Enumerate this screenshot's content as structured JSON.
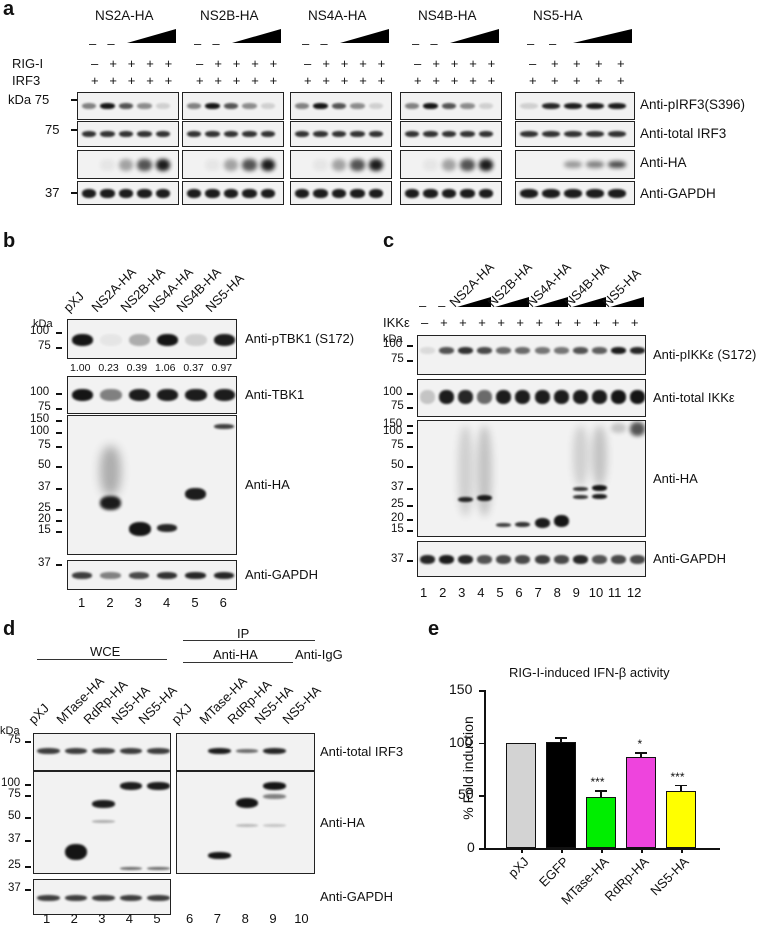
{
  "panel_a": {
    "letter": "a",
    "groups": [
      "NS2A-HA",
      "NS2B-HA",
      "NS4A-HA",
      "NS4B-HA",
      "NS5-HA"
    ],
    "row_labels": {
      "rig": "RIG-I",
      "irf3": "IRF3"
    },
    "dose_marks": [
      "–",
      "–"
    ],
    "rig_signs": [
      "–",
      "+",
      "+",
      "+",
      "+"
    ],
    "irf3_signs": [
      "+",
      "+",
      "+",
      "+",
      "+"
    ],
    "mw_labels": {
      "kda": "kDa 75",
      "m75": "75",
      "m37": "37"
    },
    "antibodies": [
      "Anti-pIRF3(S396)",
      "Anti-total IRF3",
      "Anti-HA",
      "Anti-GAPDH"
    ]
  },
  "panel_b": {
    "letter": "b",
    "lanes": [
      "pXJ",
      "NS2A-HA",
      "NS2B-HA",
      "NS4A-HA",
      "NS4B-HA",
      "NS5-HA"
    ],
    "kda": "kDa",
    "quant": [
      "1.00",
      "0.23",
      "0.39",
      "1.06",
      "0.37",
      "0.97"
    ],
    "antibodies": [
      "Anti-pTBK1 (S172)",
      "Anti-TBK1",
      "Anti-HA",
      "Anti-GAPDH"
    ],
    "mw_top": [
      "100",
      "75"
    ],
    "mw_tbk": [
      "100",
      "75"
    ],
    "mw_ha": [
      "150",
      "100",
      "75",
      "50",
      "37",
      "25",
      "20",
      "15"
    ],
    "mw_gapdh": [
      "37"
    ],
    "lane_numbers": [
      "1",
      "2",
      "3",
      "4",
      "5",
      "6"
    ]
  },
  "panel_c": {
    "letter": "c",
    "groups": [
      "NS2A-HA",
      "NS2B-HA",
      "NS4A-HA",
      "NS4B-HA",
      "NS5-HA"
    ],
    "ikk_label": "IKKε",
    "ikk_signs": [
      "–",
      "+",
      "+",
      "+",
      "+",
      "+",
      "+",
      "+",
      "+",
      "+",
      "+",
      "+"
    ],
    "kda": "kDa",
    "antibodies": [
      "Anti-pIKKε (S172)",
      "Anti-total IKKε",
      "Anti-HA",
      "Anti-GAPDH"
    ],
    "mw_top": [
      "100",
      "75"
    ],
    "mw_total": [
      "100",
      "75"
    ],
    "mw_ha": [
      "150",
      "100",
      "75",
      "50",
      "37",
      "25",
      "20",
      "15"
    ],
    "mw_gapdh": [
      "37"
    ],
    "lane_numbers": [
      "1",
      "2",
      "3",
      "4",
      "5",
      "6",
      "7",
      "8",
      "9",
      "10",
      "11",
      "12"
    ]
  },
  "panel_d": {
    "letter": "d",
    "wce": "WCE",
    "ip": "IP",
    "anti_ha": "Anti-HA",
    "anti_igg": "Anti-IgG",
    "lanes": [
      "pXJ",
      "MTase-HA",
      "RdRp-HA",
      "NS5-HA",
      "NS5-HA",
      "pXJ",
      "MTase-HA",
      "RdRp-HA",
      "NS5-HA",
      "NS5-HA"
    ],
    "kda": "kDa",
    "antibodies": [
      "Anti-total IRF3",
      "Anti-HA",
      "Anti-GAPDH"
    ],
    "mw_top": [
      "75"
    ],
    "mw_ha": [
      "100",
      "75",
      "50",
      "37",
      "25"
    ],
    "mw_gapdh": [
      "37"
    ],
    "lane_numbers": [
      "1",
      "2",
      "3",
      "4",
      "5",
      "6",
      "7",
      "8",
      "9",
      "10"
    ]
  },
  "panel_e": {
    "letter": "e"
  },
  "chart_data": {
    "type": "bar",
    "title": "RIG-I-induced IFN-β activity",
    "xlabel": "",
    "ylabel": "% Fold induction",
    "categories": [
      "pXJ",
      "EGFP",
      "MTase-HA",
      "RdRp-HA",
      "NS5-HA"
    ],
    "values": [
      100,
      101,
      48,
      86,
      54
    ],
    "errors": [
      0,
      4,
      7,
      5,
      6
    ],
    "significance": [
      "",
      "",
      "***",
      "*",
      "***"
    ],
    "colors": [
      "#d3d3d3",
      "#000000",
      "#00ee00",
      "#ee44dd",
      "#ffff00"
    ],
    "ylim": [
      0,
      150
    ],
    "yticks": [
      "0",
      "50",
      "100",
      "150"
    ],
    "grid": false
  }
}
